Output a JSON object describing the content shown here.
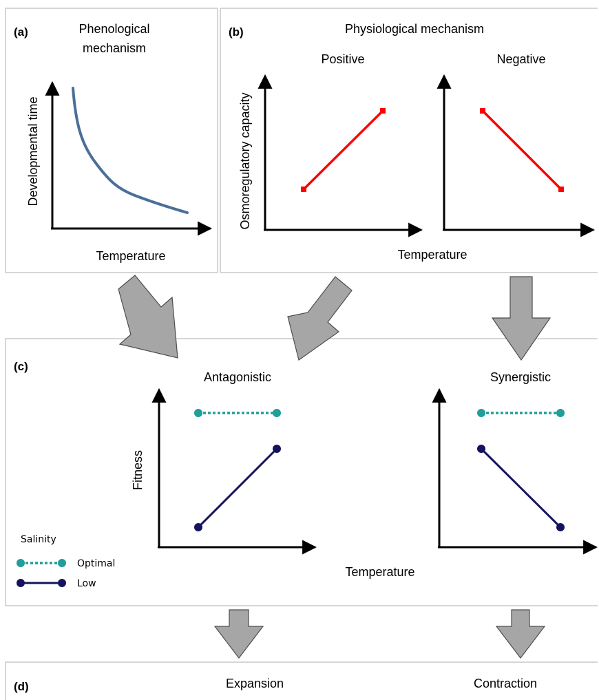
{
  "panels": {
    "a": {
      "label": "(a)",
      "title_line1": "Phenological",
      "title_line2": "mechanism",
      "y_label": "Developmental time",
      "x_label": "Temperature"
    },
    "b": {
      "label": "(b)",
      "title": "Physiological mechanism",
      "sub_positive": "Positive",
      "sub_negative": "Negative",
      "y_label": "Osmoregulatory capacity",
      "x_label": "Temperature"
    },
    "c": {
      "label": "(c)",
      "sub_antagonistic": "Antagonistic",
      "sub_synergistic": "Synergistic",
      "y_label": "Fitness",
      "x_label": "Temperature",
      "legend_title": "Salinity",
      "legend_optimal": "Optimal",
      "legend_low": "Low"
    },
    "d": {
      "label": "(d)",
      "expansion": "Expansion",
      "contraction": "Contraction"
    }
  },
  "colors": {
    "curve_blue": "#4a6f98",
    "line_red": "#ff0000",
    "optimal_teal": "#1f9e9a",
    "low_navy": "#14145e",
    "arrow_fill": "#a6a6a6",
    "arrow_stroke": "#4d4d4d",
    "frame": "#c8c8c8"
  }
}
